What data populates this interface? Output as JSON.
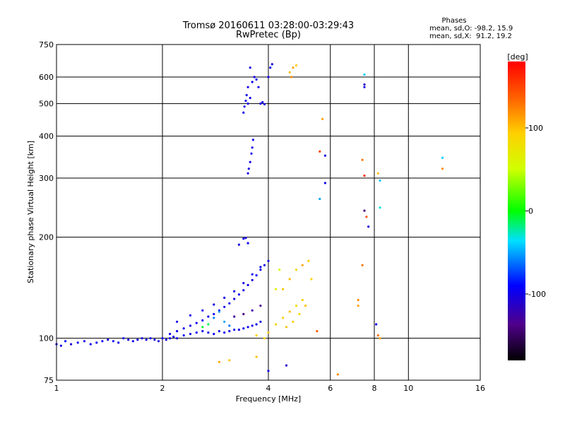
{
  "chart_data": {
    "type": "scatter",
    "title": "Tromsø 20160611 03:28:00-03:29:43",
    "subtitle": "RwPretec (Bp)",
    "xlabel": "Frequency [MHz]",
    "ylabel": "Stationary phase Virtual Height [km]",
    "x_scale": "log2",
    "y_scale": "log",
    "xlim": [
      1,
      16
    ],
    "ylim": [
      75,
      750
    ],
    "x_ticks": [
      1,
      2,
      4,
      6,
      8,
      10,
      16
    ],
    "x_tick_labels": [
      "1",
      "2",
      "4",
      "6",
      "8",
      "10",
      "16"
    ],
    "y_ticks": [
      75,
      100,
      200,
      300,
      400,
      500,
      600,
      750
    ],
    "y_tick_labels": [
      "75",
      "100",
      "200",
      "300",
      "400",
      "500",
      "600",
      "750"
    ],
    "grid": true,
    "stats": {
      "heading": "Phases",
      "line_o": "mean, sd,O: -98.2, 15.9",
      "line_x": "mean, sd,X:  91.2, 19.2"
    },
    "colorbar": {
      "label": "[deg]",
      "range": [
        -180,
        180
      ],
      "ticks": [
        100,
        0,
        -100
      ],
      "tick_labels": [
        "100",
        "0",
        "-100"
      ]
    },
    "points": [
      {
        "x": 1.0,
        "y": 96,
        "phase": -95
      },
      {
        "x": 1.03,
        "y": 95,
        "phase": -100
      },
      {
        "x": 1.06,
        "y": 98,
        "phase": -90
      },
      {
        "x": 1.1,
        "y": 96,
        "phase": -105
      },
      {
        "x": 1.15,
        "y": 97,
        "phase": -95
      },
      {
        "x": 1.2,
        "y": 98,
        "phase": -100
      },
      {
        "x": 1.25,
        "y": 96,
        "phase": -92
      },
      {
        "x": 1.3,
        "y": 97,
        "phase": -98
      },
      {
        "x": 1.35,
        "y": 98,
        "phase": -96
      },
      {
        "x": 1.4,
        "y": 99,
        "phase": -100
      },
      {
        "x": 1.45,
        "y": 98,
        "phase": -94
      },
      {
        "x": 1.5,
        "y": 97,
        "phase": -99
      },
      {
        "x": 1.55,
        "y": 100,
        "phase": -97
      },
      {
        "x": 1.6,
        "y": 99,
        "phase": -102
      },
      {
        "x": 1.65,
        "y": 98,
        "phase": -95
      },
      {
        "x": 1.7,
        "y": 99,
        "phase": -100
      },
      {
        "x": 1.75,
        "y": 100,
        "phase": -98
      },
      {
        "x": 1.8,
        "y": 99,
        "phase": -96
      },
      {
        "x": 1.85,
        "y": 100,
        "phase": -101
      },
      {
        "x": 1.9,
        "y": 99,
        "phase": -97
      },
      {
        "x": 1.95,
        "y": 98,
        "phase": -99
      },
      {
        "x": 2.0,
        "y": 100,
        "phase": -95
      },
      {
        "x": 2.05,
        "y": 99,
        "phase": -100
      },
      {
        "x": 2.1,
        "y": 100,
        "phase": -98
      },
      {
        "x": 2.15,
        "y": 101,
        "phase": -97
      },
      {
        "x": 2.2,
        "y": 100,
        "phase": -99
      },
      {
        "x": 2.3,
        "y": 102,
        "phase": -96
      },
      {
        "x": 2.4,
        "y": 103,
        "phase": -100
      },
      {
        "x": 2.5,
        "y": 104,
        "phase": -95
      },
      {
        "x": 2.6,
        "y": 105,
        "phase": -98
      },
      {
        "x": 2.7,
        "y": 104,
        "phase": -101
      },
      {
        "x": 2.8,
        "y": 103,
        "phase": -96
      },
      {
        "x": 2.9,
        "y": 105,
        "phase": -99
      },
      {
        "x": 3.0,
        "y": 104,
        "phase": -97
      },
      {
        "x": 3.1,
        "y": 105,
        "phase": -100
      },
      {
        "x": 3.2,
        "y": 106,
        "phase": -95
      },
      {
        "x": 3.3,
        "y": 106,
        "phase": -98
      },
      {
        "x": 3.4,
        "y": 107,
        "phase": -102
      },
      {
        "x": 3.5,
        "y": 108,
        "phase": -97
      },
      {
        "x": 3.6,
        "y": 109,
        "phase": -100
      },
      {
        "x": 3.7,
        "y": 110,
        "phase": -96
      },
      {
        "x": 3.8,
        "y": 112,
        "phase": -99
      },
      {
        "x": 2.1,
        "y": 103,
        "phase": -100
      },
      {
        "x": 2.2,
        "y": 105,
        "phase": -98
      },
      {
        "x": 2.3,
        "y": 107,
        "phase": -95
      },
      {
        "x": 2.4,
        "y": 109,
        "phase": -101
      },
      {
        "x": 2.5,
        "y": 111,
        "phase": -97
      },
      {
        "x": 2.6,
        "y": 113,
        "phase": -99
      },
      {
        "x": 2.7,
        "y": 116,
        "phase": -100
      },
      {
        "x": 2.8,
        "y": 118,
        "phase": -96
      },
      {
        "x": 2.9,
        "y": 121,
        "phase": -98
      },
      {
        "x": 3.0,
        "y": 124,
        "phase": -101
      },
      {
        "x": 3.1,
        "y": 127,
        "phase": -97
      },
      {
        "x": 3.2,
        "y": 131,
        "phase": -100
      },
      {
        "x": 3.3,
        "y": 135,
        "phase": -95
      },
      {
        "x": 3.4,
        "y": 139,
        "phase": -99
      },
      {
        "x": 3.5,
        "y": 144,
        "phase": -98
      },
      {
        "x": 3.6,
        "y": 149,
        "phase": -102
      },
      {
        "x": 3.7,
        "y": 154,
        "phase": -96
      },
      {
        "x": 3.8,
        "y": 160,
        "phase": -99
      },
      {
        "x": 3.9,
        "y": 165,
        "phase": -100
      },
      {
        "x": 4.0,
        "y": 170,
        "phase": -97
      },
      {
        "x": 2.6,
        "y": 108,
        "phase": -5
      },
      {
        "x": 2.7,
        "y": 110,
        "phase": -10
      },
      {
        "x": 2.8,
        "y": 115,
        "phase": -60
      },
      {
        "x": 2.9,
        "y": 120,
        "phase": -55
      },
      {
        "x": 3.0,
        "y": 112,
        "phase": -50
      },
      {
        "x": 3.1,
        "y": 109,
        "phase": -62
      },
      {
        "x": 2.2,
        "y": 112,
        "phase": -100
      },
      {
        "x": 2.4,
        "y": 117,
        "phase": -98
      },
      {
        "x": 2.6,
        "y": 121,
        "phase": -96
      },
      {
        "x": 2.8,
        "y": 126,
        "phase": -100
      },
      {
        "x": 3.0,
        "y": 132,
        "phase": -97
      },
      {
        "x": 3.2,
        "y": 138,
        "phase": -99
      },
      {
        "x": 3.4,
        "y": 146,
        "phase": -101
      },
      {
        "x": 3.6,
        "y": 155,
        "phase": -95
      },
      {
        "x": 3.8,
        "y": 163,
        "phase": -98
      },
      {
        "x": 3.2,
        "y": 116,
        "phase": -130
      },
      {
        "x": 3.4,
        "y": 118,
        "phase": -140
      },
      {
        "x": 3.6,
        "y": 121,
        "phase": -125
      },
      {
        "x": 3.8,
        "y": 125,
        "phase": -135
      },
      {
        "x": 3.3,
        "y": 190,
        "phase": -100
      },
      {
        "x": 3.4,
        "y": 198,
        "phase": -98
      },
      {
        "x": 3.45,
        "y": 199,
        "phase": -102
      },
      {
        "x": 3.5,
        "y": 192,
        "phase": -97
      },
      {
        "x": 3.5,
        "y": 310,
        "phase": -98
      },
      {
        "x": 3.52,
        "y": 320,
        "phase": -100
      },
      {
        "x": 3.55,
        "y": 335,
        "phase": -96
      },
      {
        "x": 3.58,
        "y": 355,
        "phase": -99
      },
      {
        "x": 3.6,
        "y": 370,
        "phase": -101
      },
      {
        "x": 3.62,
        "y": 390,
        "phase": -97
      },
      {
        "x": 3.4,
        "y": 470,
        "phase": -100
      },
      {
        "x": 3.42,
        "y": 490,
        "phase": -98
      },
      {
        "x": 3.45,
        "y": 510,
        "phase": -96
      },
      {
        "x": 3.47,
        "y": 530,
        "phase": -100
      },
      {
        "x": 3.5,
        "y": 500,
        "phase": -97
      },
      {
        "x": 3.55,
        "y": 520,
        "phase": -99
      },
      {
        "x": 3.5,
        "y": 560,
        "phase": -101
      },
      {
        "x": 3.6,
        "y": 580,
        "phase": -95
      },
      {
        "x": 3.65,
        "y": 600,
        "phase": -98
      },
      {
        "x": 3.7,
        "y": 590,
        "phase": -100
      },
      {
        "x": 3.75,
        "y": 560,
        "phase": -97
      },
      {
        "x": 3.8,
        "y": 500,
        "phase": -99
      },
      {
        "x": 3.85,
        "y": 505,
        "phase": -96
      },
      {
        "x": 3.9,
        "y": 498,
        "phase": -100
      },
      {
        "x": 3.55,
        "y": 640,
        "phase": -98
      },
      {
        "x": 4.0,
        "y": 600,
        "phase": -101
      },
      {
        "x": 4.05,
        "y": 640,
        "phase": -97
      },
      {
        "x": 4.1,
        "y": 655,
        "phase": -99
      },
      {
        "x": 4.6,
        "y": 620,
        "phase": 100
      },
      {
        "x": 4.7,
        "y": 640,
        "phase": 110
      },
      {
        "x": 4.8,
        "y": 650,
        "phase": 95
      },
      {
        "x": 4.65,
        "y": 600,
        "phase": 120
      },
      {
        "x": 3.7,
        "y": 102,
        "phase": 90
      },
      {
        "x": 3.9,
        "y": 100,
        "phase": 95
      },
      {
        "x": 4.0,
        "y": 104,
        "phase": 100
      },
      {
        "x": 4.2,
        "y": 110,
        "phase": 90
      },
      {
        "x": 4.4,
        "y": 115,
        "phase": 95
      },
      {
        "x": 4.6,
        "y": 120,
        "phase": 100
      },
      {
        "x": 4.8,
        "y": 125,
        "phase": 85
      },
      {
        "x": 5.0,
        "y": 130,
        "phase": 92
      },
      {
        "x": 4.4,
        "y": 140,
        "phase": 98
      },
      {
        "x": 4.6,
        "y": 150,
        "phase": 102
      },
      {
        "x": 4.8,
        "y": 160,
        "phase": 88
      },
      {
        "x": 5.0,
        "y": 165,
        "phase": 110
      },
      {
        "x": 5.2,
        "y": 170,
        "phase": 95
      },
      {
        "x": 5.3,
        "y": 150,
        "phase": 90
      },
      {
        "x": 4.5,
        "y": 108,
        "phase": 100
      },
      {
        "x": 4.7,
        "y": 112,
        "phase": 95
      },
      {
        "x": 4.9,
        "y": 118,
        "phase": 88
      },
      {
        "x": 5.1,
        "y": 125,
        "phase": 100
      },
      {
        "x": 4.3,
        "y": 160,
        "phase": 50
      },
      {
        "x": 4.2,
        "y": 140,
        "phase": 60
      },
      {
        "x": 5.5,
        "y": 105,
        "phase": 140
      },
      {
        "x": 5.6,
        "y": 360,
        "phase": 150
      },
      {
        "x": 5.7,
        "y": 450,
        "phase": 110
      },
      {
        "x": 5.8,
        "y": 350,
        "phase": -100
      },
      {
        "x": 5.8,
        "y": 290,
        "phase": -98
      },
      {
        "x": 5.6,
        "y": 260,
        "phase": -50
      },
      {
        "x": 6.3,
        "y": 78,
        "phase": 120
      },
      {
        "x": 4.0,
        "y": 80,
        "phase": -100
      },
      {
        "x": 4.5,
        "y": 83,
        "phase": -110
      },
      {
        "x": 3.7,
        "y": 88,
        "phase": 100
      },
      {
        "x": 2.9,
        "y": 85,
        "phase": 110
      },
      {
        "x": 3.1,
        "y": 86,
        "phase": 100
      },
      {
        "x": 7.5,
        "y": 610,
        "phase": -40
      },
      {
        "x": 7.5,
        "y": 570,
        "phase": -110
      },
      {
        "x": 7.5,
        "y": 560,
        "phase": -100
      },
      {
        "x": 7.4,
        "y": 340,
        "phase": 130
      },
      {
        "x": 7.5,
        "y": 305,
        "phase": 160
      },
      {
        "x": 7.5,
        "y": 240,
        "phase": -140
      },
      {
        "x": 7.6,
        "y": 230,
        "phase": 140
      },
      {
        "x": 7.7,
        "y": 215,
        "phase": -100
      },
      {
        "x": 7.4,
        "y": 165,
        "phase": 130
      },
      {
        "x": 7.2,
        "y": 130,
        "phase": 120
      },
      {
        "x": 7.2,
        "y": 125,
        "phase": 110
      },
      {
        "x": 8.2,
        "y": 310,
        "phase": 100
      },
      {
        "x": 8.3,
        "y": 295,
        "phase": -40
      },
      {
        "x": 8.3,
        "y": 245,
        "phase": -30
      },
      {
        "x": 8.1,
        "y": 110,
        "phase": -100
      },
      {
        "x": 8.2,
        "y": 102,
        "phase": 130
      },
      {
        "x": 8.3,
        "y": 100,
        "phase": 110
      },
      {
        "x": 12.5,
        "y": 345,
        "phase": -40
      },
      {
        "x": 12.5,
        "y": 320,
        "phase": 120
      }
    ]
  }
}
